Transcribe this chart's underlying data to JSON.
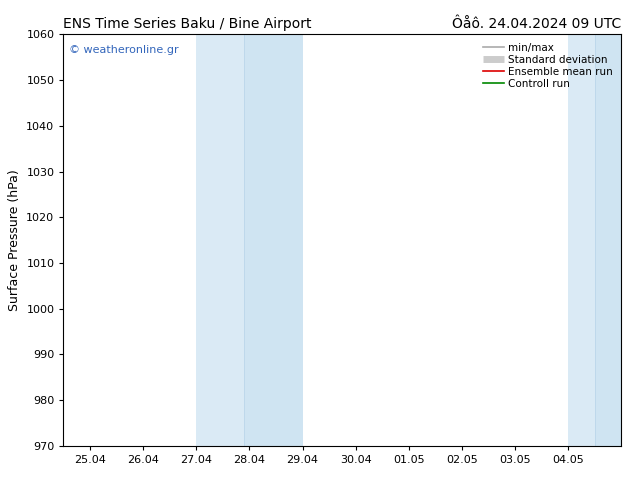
{
  "title_left": "ENS Time Series Baku / Bine Airport",
  "title_right": "Ôåô. 24.04.2024 09 UTC",
  "ylabel": "Surface Pressure (hPa)",
  "ylim": [
    970,
    1060
  ],
  "yticks": [
    970,
    980,
    990,
    1000,
    1010,
    1020,
    1030,
    1040,
    1050,
    1060
  ],
  "xtick_labels": [
    "25.04",
    "26.04",
    "27.04",
    "28.04",
    "29.04",
    "30.04",
    "01.05",
    "02.05",
    "03.05",
    "04.05"
  ],
  "xtick_positions": [
    0,
    1,
    2,
    3,
    4,
    5,
    6,
    7,
    8,
    9
  ],
  "xlim": [
    -0.5,
    10.0
  ],
  "shaded_regions": [
    {
      "xstart": 1.75,
      "xend": 2.5,
      "color": "#ddeef8"
    },
    {
      "xstart": 2.5,
      "xend": 3.75,
      "color": "#cce0f0"
    },
    {
      "xstart": 8.75,
      "xend": 9.5,
      "color": "#ddeef8"
    },
    {
      "xstart": 9.5,
      "xend": 10.0,
      "color": "#cce0f0"
    }
  ],
  "watermark": "© weatheronline.gr",
  "watermark_color": "#3366bb",
  "legend_entries": [
    {
      "label": "min/max",
      "color": "#aaaaaa",
      "lw": 1.2
    },
    {
      "label": "Standard deviation",
      "color": "#cccccc",
      "lw": 5
    },
    {
      "label": "Ensemble mean run",
      "color": "#dd0000",
      "lw": 1.2
    },
    {
      "label": "Controll run",
      "color": "#008800",
      "lw": 1.2
    }
  ],
  "title_fontsize": 10,
  "tick_fontsize": 8,
  "ylabel_fontsize": 9,
  "legend_fontsize": 7.5,
  "watermark_fontsize": 8,
  "background_color": "#ffffff",
  "spine_color": "#000000"
}
